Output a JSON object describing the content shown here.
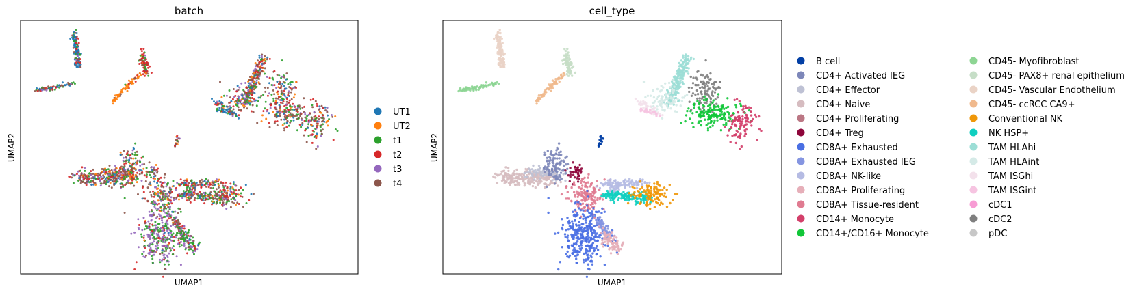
{
  "chart_data": [
    {
      "type": "scatter",
      "title": "batch",
      "xlabel": "UMAP1",
      "ylabel": "UMAP2",
      "grid": false,
      "ticks": false,
      "legend_position": "right",
      "legend_columns": 1,
      "series": [
        {
          "name": "UT1",
          "color": "#1f77b4"
        },
        {
          "name": "UT2",
          "color": "#ff7f0e"
        },
        {
          "name": "t1",
          "color": "#2ca02c"
        },
        {
          "name": "t2",
          "color": "#d62728"
        },
        {
          "name": "t3",
          "color": "#9467bd"
        },
        {
          "name": "t4",
          "color": "#8c564b"
        }
      ]
    },
    {
      "type": "scatter",
      "title": "cell_type",
      "xlabel": "UMAP1",
      "ylabel": "UMAP2",
      "grid": false,
      "ticks": false,
      "legend_position": "right",
      "legend_columns": 2,
      "series": [
        {
          "name": "B cell",
          "color": "#023fa5"
        },
        {
          "name": "CD4+ Activated IEG",
          "color": "#7d87b9"
        },
        {
          "name": "CD4+ Effector",
          "color": "#bec1d4"
        },
        {
          "name": "CD4+ Naive",
          "color": "#d6bcc0"
        },
        {
          "name": "CD4+ Proliferating",
          "color": "#bb7784"
        },
        {
          "name": "CD4+ Treg",
          "color": "#8e063b"
        },
        {
          "name": "CD8A+ Exhausted",
          "color": "#4a6fe3"
        },
        {
          "name": "CD8A+ Exhausted IEG",
          "color": "#8595e1"
        },
        {
          "name": "CD8A+ NK-like",
          "color": "#b5bbe3"
        },
        {
          "name": "CD8A+ Proliferating",
          "color": "#e6afb9"
        },
        {
          "name": "CD8A+ Tissue-resident",
          "color": "#e07b91"
        },
        {
          "name": "CD14+ Monocyte",
          "color": "#d33f6a"
        },
        {
          "name": "CD14+/CD16+ Monocyte",
          "color": "#11c638"
        },
        {
          "name": "CD45- Myofibroblast",
          "color": "#8dd593"
        },
        {
          "name": "CD45- PAX8+ renal epithelium",
          "color": "#c6dec7"
        },
        {
          "name": "CD45- Vascular Endothelium",
          "color": "#ead3c6"
        },
        {
          "name": "CD45- ccRCC CA9+",
          "color": "#f0b98d"
        },
        {
          "name": "Conventional NK",
          "color": "#ef9708"
        },
        {
          "name": "NK HSP+",
          "color": "#0fcfc0"
        },
        {
          "name": "TAM HLAhi",
          "color": "#9cded6"
        },
        {
          "name": "TAM HLAint",
          "color": "#d5eae7"
        },
        {
          "name": "TAM ISGhi",
          "color": "#f3e1eb"
        },
        {
          "name": "TAM ISGint",
          "color": "#f6c4e1"
        },
        {
          "name": "cDC1",
          "color": "#f79cd4"
        },
        {
          "name": "cDC2",
          "color": "#7f7f7f"
        },
        {
          "name": "pDC",
          "color": "#c7c7c7"
        }
      ]
    }
  ]
}
